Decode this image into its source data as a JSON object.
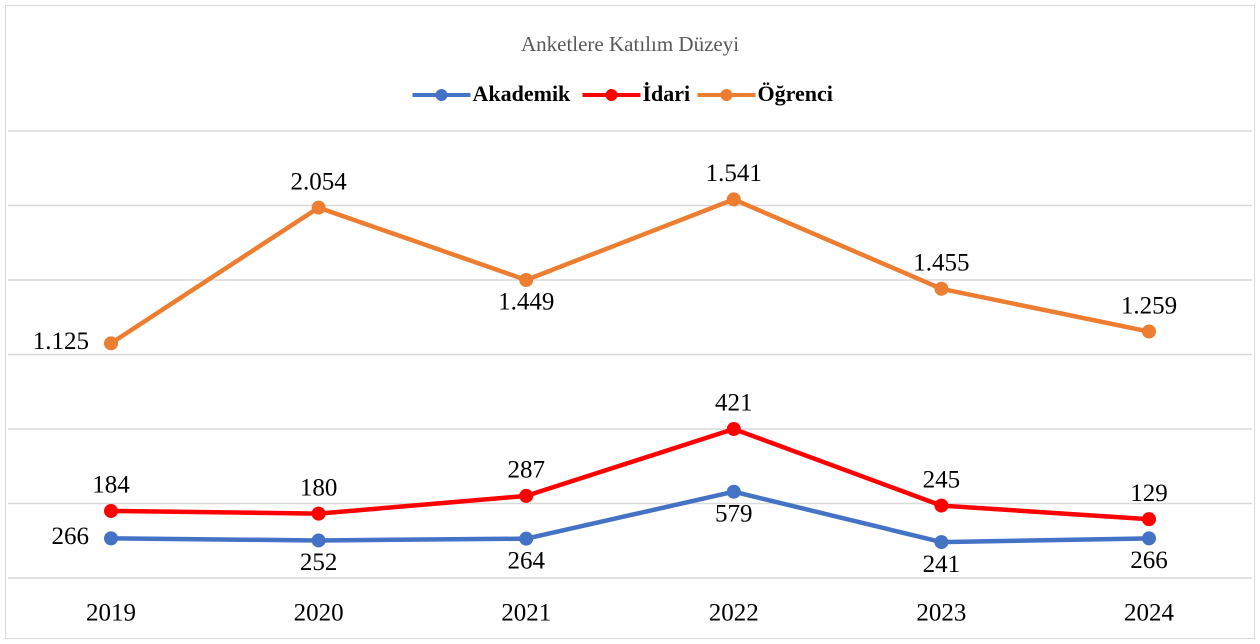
{
  "chart_data": {
    "type": "line",
    "stacked": true,
    "title": "Anketlere Katılım Düzeyi",
    "categories": [
      "2019",
      "2020",
      "2021",
      "2022",
      "2023",
      "2024"
    ],
    "series": [
      {
        "name": "Akademik",
        "color": "#4472c4",
        "values": [
          266,
          252,
          264,
          579,
          241,
          266
        ]
      },
      {
        "name": "İdari",
        "color": "#ff0000",
        "values": [
          184,
          180,
          287,
          421,
          245,
          129
        ]
      },
      {
        "name": "Öğrenci",
        "color": "#ed7d31",
        "values": [
          1125,
          2054,
          1449,
          1541,
          1455,
          1259
        ],
        "value_labels": [
          "1.125",
          "2.054",
          "1.449",
          "1.541",
          "1.455",
          "1.259"
        ]
      }
    ],
    "ylim": [
      0,
      3000
    ],
    "yticks": [
      0,
      500,
      1000,
      1500,
      2000,
      2500,
      3000
    ],
    "grid": true,
    "legend": "top"
  }
}
